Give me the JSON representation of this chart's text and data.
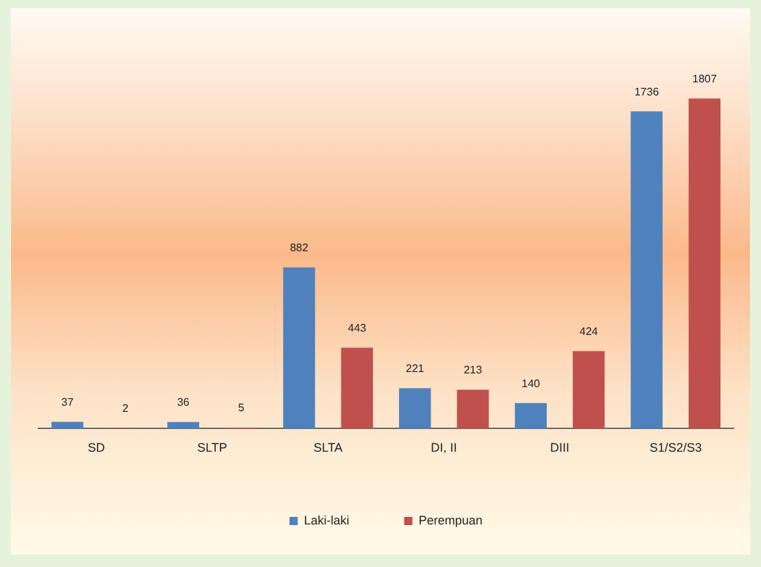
{
  "chart_data": {
    "type": "bar",
    "categories": [
      "SD",
      "SLTP",
      "SLTA",
      "DI, II",
      "DIII",
      "S1/S2/S3"
    ],
    "series": [
      {
        "name": "Laki-laki",
        "color": "#4f81bd",
        "values": [
          37,
          36,
          882,
          221,
          140,
          1736
        ]
      },
      {
        "name": "Perempuan",
        "color": "#c0504d",
        "values": [
          2,
          5,
          443,
          213,
          424,
          1807
        ]
      }
    ],
    "data_labels": true,
    "legend": "bottom",
    "grid": false
  }
}
